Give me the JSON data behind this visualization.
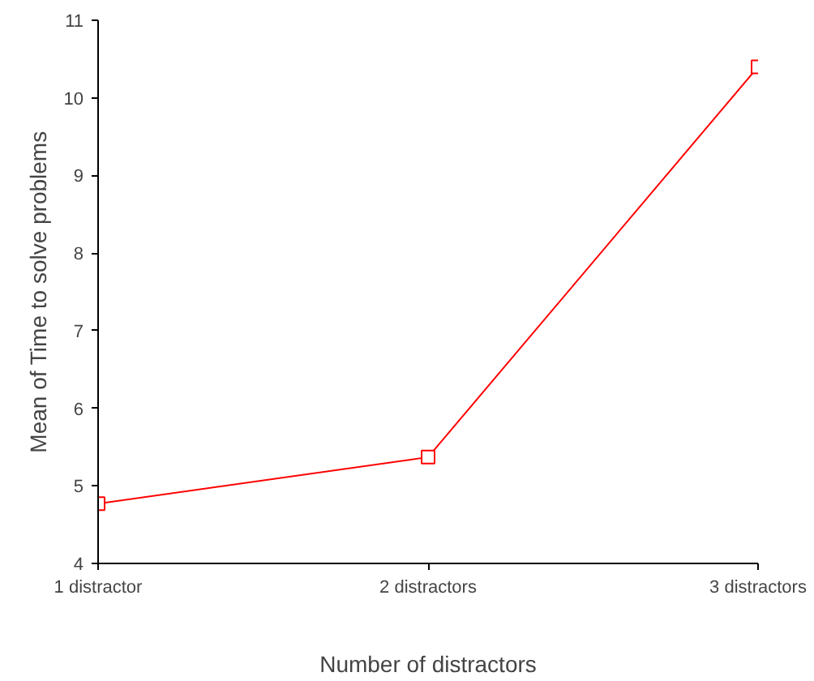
{
  "chart_data": {
    "type": "line",
    "xlabel": "Number of distractors",
    "ylabel": "Mean of Time to solve problems",
    "categories": [
      "1 distractor",
      "2 distractors",
      "3 distractors"
    ],
    "series": [
      {
        "color": "#ff0000",
        "values": [
          4.77,
          5.37,
          10.4
        ]
      }
    ],
    "ylim": [
      4,
      11
    ],
    "yticks": [
      4,
      5,
      6,
      7,
      8,
      9,
      10,
      11
    ],
    "marker": "square",
    "line_style": "solid",
    "grid": false
  }
}
